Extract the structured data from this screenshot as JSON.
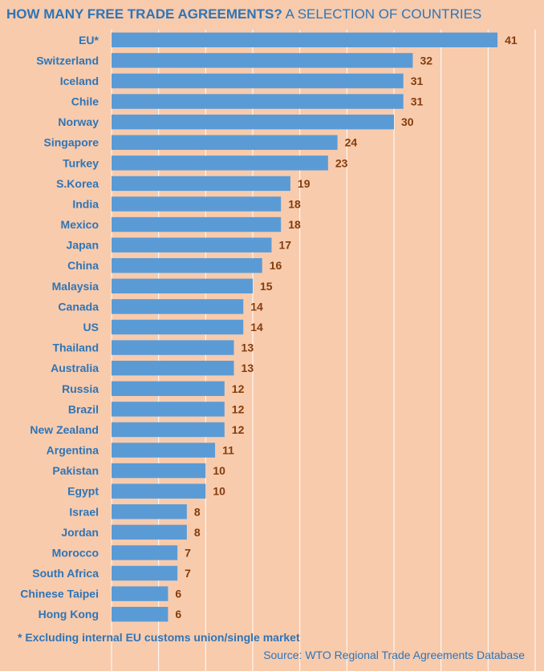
{
  "title": {
    "bold_part": "HOW MANY FREE TRADE AGREEMENTS?",
    "normal_part": "A SELECTION OF COUNTRIES"
  },
  "footnote": "* Excluding internal EU customs union/single market",
  "source": "Source: WTO Regional Trade Agreements Database",
  "colors": {
    "bar": "#5b9bd5",
    "label": "#2e75b6",
    "value": "#843c0c",
    "background": "#f8cbad"
  },
  "chart_data": {
    "type": "bar",
    "orientation": "horizontal",
    "title": "HOW MANY FREE TRADE AGREEMENTS? A SELECTION OF COUNTRIES",
    "categories": [
      "EU*",
      "Switzerland",
      "Iceland",
      "Chile",
      "Norway",
      "Singapore",
      "Turkey",
      "S.Korea",
      "India",
      "Mexico",
      "Japan",
      "China",
      "Malaysia",
      "Canada",
      "US",
      "Thailand",
      "Australia",
      "Russia",
      "Brazil",
      "New Zealand",
      "Argentina",
      "Pakistan",
      "Egypt",
      "Israel",
      "Jordan",
      "Morocco",
      "South Africa",
      "Chinese Taipei",
      "Hong Kong"
    ],
    "values": [
      41,
      32,
      31,
      31,
      30,
      24,
      23,
      19,
      18,
      18,
      17,
      16,
      15,
      14,
      14,
      13,
      13,
      12,
      12,
      12,
      11,
      10,
      10,
      8,
      8,
      7,
      7,
      6,
      6
    ],
    "xlim": [
      0,
      45
    ],
    "grid": true,
    "data_labels": true
  }
}
